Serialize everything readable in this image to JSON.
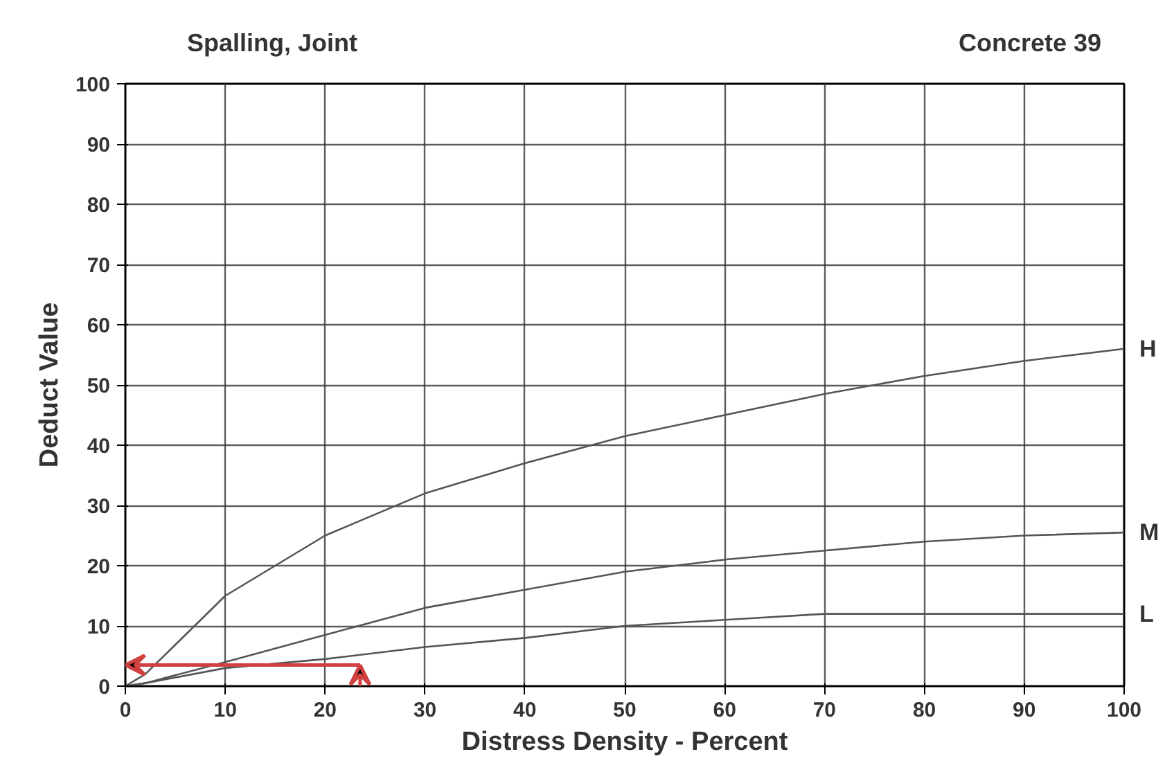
{
  "chart_data": {
    "type": "line",
    "title": "Spalling, Joint",
    "subtitle": "Concrete 39",
    "xlabel": "Distress Density - Percent",
    "ylabel": "Deduct Value",
    "x": [
      0,
      2,
      10,
      20,
      30,
      40,
      50,
      60,
      70,
      80,
      90,
      100
    ],
    "series": [
      {
        "name": "H",
        "color": "#555555",
        "values": [
          0,
          2,
          15,
          25,
          32,
          37,
          41.5,
          45,
          48.5,
          51.5,
          54,
          56
        ]
      },
      {
        "name": "M",
        "color": "#555555",
        "values": [
          0,
          0.5,
          4,
          8.5,
          13,
          16,
          19,
          21,
          22.5,
          24,
          25,
          25.5
        ]
      },
      {
        "name": "L",
        "color": "#555555",
        "values": [
          0,
          0.5,
          3,
          4.5,
          6.5,
          8,
          10,
          11,
          12,
          12,
          12,
          12
        ]
      }
    ],
    "xlim": [
      0,
      100
    ],
    "ylim": [
      0,
      100
    ],
    "xticks": [
      0,
      10,
      20,
      30,
      40,
      50,
      60,
      70,
      80,
      90,
      100
    ],
    "yticks": [
      0,
      10,
      20,
      30,
      40,
      50,
      60,
      70,
      80,
      90,
      100
    ],
    "grid": true,
    "marker": "none",
    "line_style": "solid"
  }
}
